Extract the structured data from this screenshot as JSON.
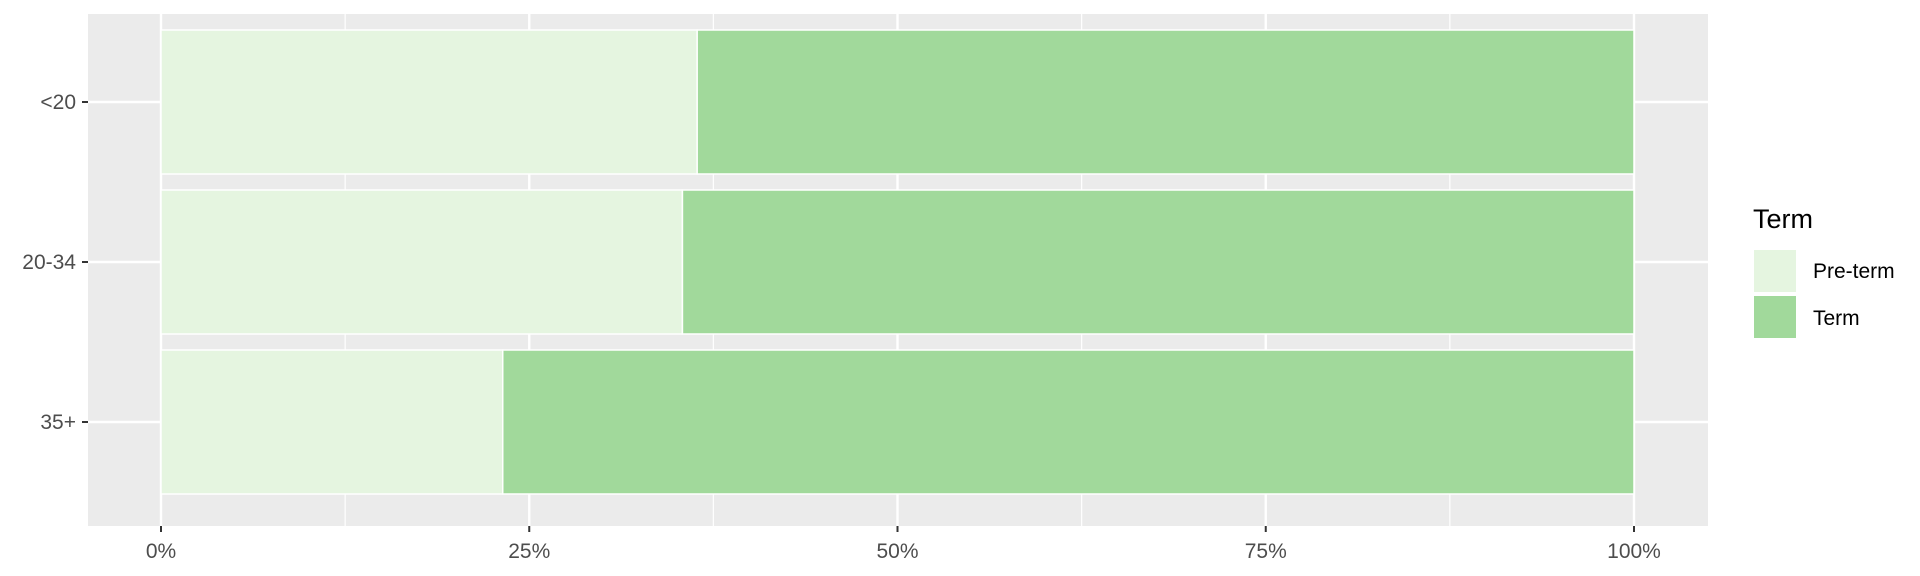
{
  "chart_data": {
    "type": "bar",
    "orientation": "horizontal",
    "stacked": true,
    "categories": [
      "<20",
      "20-34",
      "35+"
    ],
    "series": [
      {
        "name": "Pre-term",
        "values": [
          36.4,
          35.4,
          23.2
        ],
        "color": "#e5f5e0"
      },
      {
        "name": "Term",
        "values": [
          63.6,
          64.6,
          76.8
        ],
        "color": "#a1d99b"
      }
    ],
    "x_ticks": [
      "0%",
      "25%",
      "50%",
      "75%",
      "100%"
    ],
    "xlim": [
      0,
      100
    ],
    "legend": {
      "title": "Term",
      "placement": "right"
    },
    "grid": true,
    "panel_color": "#ebebeb"
  }
}
